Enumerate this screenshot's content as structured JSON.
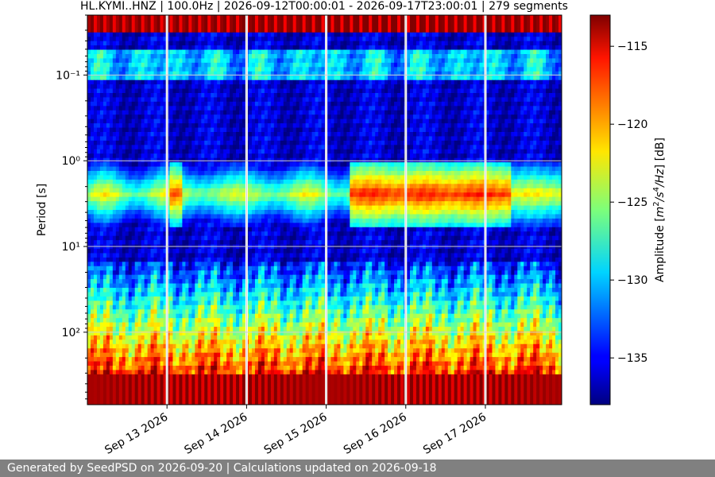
{
  "chart_data": {
    "type": "heatmap",
    "title": "HL.KYMI..HNZ | 100.0Hz | 2026-09-12T00:00:01 - 2026-09-17T23:00:01 | 279 segments",
    "ylabel": "Period [s]",
    "colorbar_label": "Amplitude [m²/s⁴/Hz] [dB]",
    "x_range": [
      "2026-09-12T00:00:01",
      "2026-09-17T23:00:01"
    ],
    "x_ticks": [
      "Sep 13 2026",
      "Sep 14 2026",
      "Sep 15 2026",
      "Sep 16 2026",
      "Sep 17 2026"
    ],
    "y_scale": "log",
    "y_inverted": true,
    "y_range": [
      0.02,
      700
    ],
    "y_ticks": [
      "10⁻¹",
      "10⁰",
      "10¹",
      "10²"
    ],
    "colorbar_range": [
      -138,
      -113
    ],
    "colorbar_ticks": [
      "−115",
      "−120",
      "−125",
      "−130",
      "−135"
    ],
    "colormap": "jet",
    "grid": true,
    "data_gaps": [
      "2026-09-13T00:00",
      "2026-09-14T00:00",
      "2026-09-15T00:00",
      "2026-09-16T00:00",
      "2026-09-17T00:00"
    ],
    "features": {
      "high_frequency_band_db": -115,
      "microseism_band_period_s": [
        1.5,
        4
      ],
      "microseism_peak_db": -117,
      "long_period_floor_db": -114,
      "background_db": -136
    }
  },
  "footer": {
    "text": "Generated by SeedPSD on 2026-09-20 | Calculations updated on 2026-09-18"
  }
}
